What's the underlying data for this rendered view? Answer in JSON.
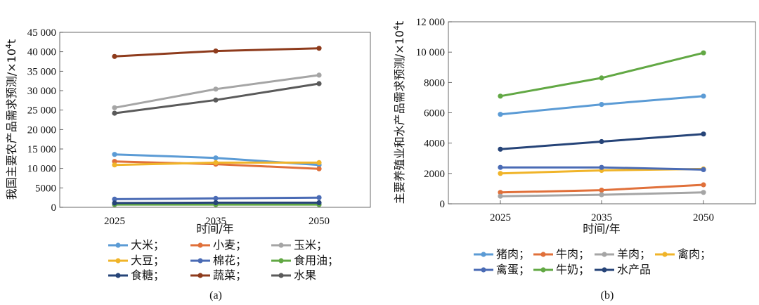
{
  "chart_data": [
    {
      "type": "line",
      "panel": "a",
      "caption": "(a)",
      "categories": [
        "2025",
        "2035",
        "2050"
      ],
      "xlabel": "时间/年",
      "ylabel_main": "我国主要农产品需求预测/×10",
      "ylabel_sup": "4",
      "ylabel_unit": "t",
      "ylim": [
        0,
        45000
      ],
      "yticks": [
        0,
        5000,
        10000,
        15000,
        20000,
        25000,
        30000,
        35000,
        40000,
        45000
      ],
      "ytick_labels": [
        "0",
        "5000",
        "10 000",
        "15 000",
        "20 000",
        "25 000",
        "30 000",
        "35 000",
        "40 000",
        "45 000"
      ],
      "series": [
        {
          "name": "大米；",
          "color": "#5b9bd5",
          "values": [
            13600,
            12700,
            10900
          ]
        },
        {
          "name": "小麦；",
          "color": "#e0703a",
          "values": [
            11800,
            11100,
            9900
          ]
        },
        {
          "name": "玉米；",
          "color": "#a5a5a5",
          "values": [
            25600,
            30400,
            34000
          ]
        },
        {
          "name": "大豆；",
          "color": "#f0b429",
          "values": [
            10900,
            11500,
            11500
          ]
        },
        {
          "name": "棉花；",
          "color": "#4a6bb5",
          "values": [
            2100,
            2300,
            2500
          ]
        },
        {
          "name": "食用油；",
          "color": "#62a844",
          "values": [
            700,
            700,
            700
          ]
        },
        {
          "name": "食糖；",
          "color": "#264478",
          "values": [
            1100,
            1200,
            1200
          ]
        },
        {
          "name": "蔬菜；",
          "color": "#8e3b1c",
          "values": [
            38800,
            40200,
            40900
          ]
        },
        {
          "name": "水果",
          "color": "#5a5a5a",
          "values": [
            24200,
            27600,
            31800
          ]
        }
      ]
    },
    {
      "type": "line",
      "panel": "b",
      "caption": "(b)",
      "categories": [
        "2025",
        "2035",
        "2050"
      ],
      "xlabel": "时间/年",
      "ylabel_main": "主要养殖业和水产品需求预测/×10",
      "ylabel_sup": "4",
      "ylabel_unit": "t",
      "ylim": [
        0,
        12000
      ],
      "yticks": [
        0,
        2000,
        4000,
        6000,
        8000,
        10000,
        12000
      ],
      "ytick_labels": [
        "0",
        "2000",
        "4000",
        "6000",
        "8000",
        "10 000",
        "12 000"
      ],
      "series": [
        {
          "name": "猪肉；",
          "color": "#5b9bd5",
          "values": [
            5900,
            6550,
            7100
          ]
        },
        {
          "name": "牛肉；",
          "color": "#e0703a",
          "values": [
            750,
            900,
            1250
          ]
        },
        {
          "name": "羊肉；",
          "color": "#a5a5a5",
          "values": [
            500,
            600,
            750
          ]
        },
        {
          "name": "禽肉；",
          "color": "#f0b429",
          "values": [
            2000,
            2200,
            2300
          ]
        },
        {
          "name": "禽蛋；",
          "color": "#4a6bb5",
          "values": [
            2400,
            2400,
            2250
          ]
        },
        {
          "name": "牛奶；",
          "color": "#62a844",
          "values": [
            7100,
            8300,
            9950
          ]
        },
        {
          "name": "水产品",
          "color": "#264478",
          "values": [
            3600,
            4100,
            4600
          ]
        }
      ]
    }
  ]
}
